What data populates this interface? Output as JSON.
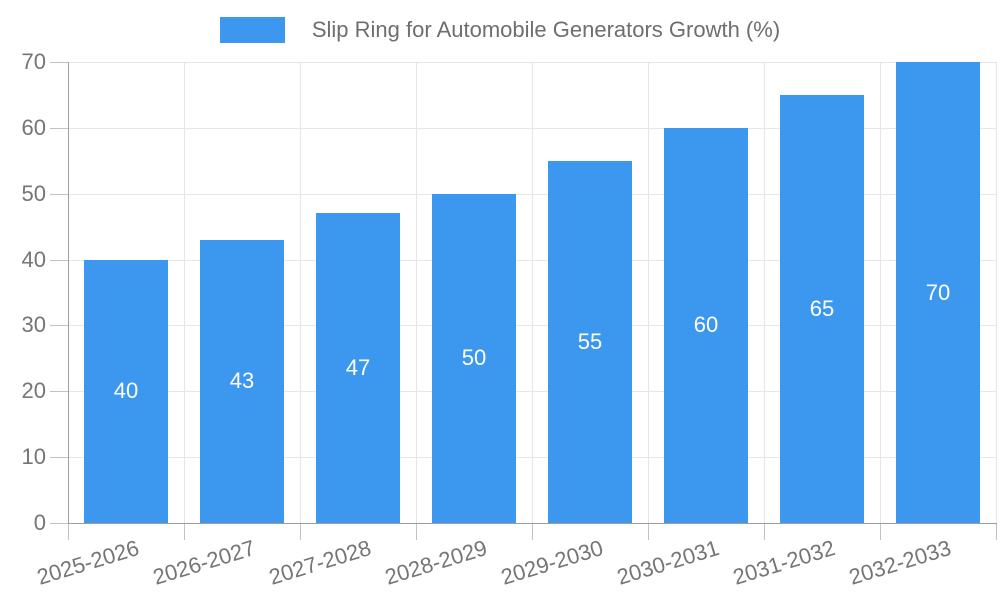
{
  "legend": {
    "label": "Slip Ring for Automobile Generators Growth (%)",
    "position": "top"
  },
  "chart_data": {
    "type": "bar",
    "title": "Slip Ring for Automobile Generators Growth (%)",
    "categories": [
      "2025-2026",
      "2026-2027",
      "2027-2028",
      "2028-2029",
      "2029-2030",
      "2030-2031",
      "2031-2032",
      "2032-2033"
    ],
    "values": [
      40,
      43,
      47,
      50,
      55,
      60,
      65,
      70
    ],
    "value_labels": [
      "40",
      "43",
      "47",
      "50",
      "55",
      "60",
      "65",
      "70"
    ],
    "xlabel": "",
    "ylabel": "",
    "ylim": [
      0,
      70
    ],
    "y_ticks": [
      0,
      10,
      20,
      30,
      40,
      50,
      60,
      70
    ],
    "grid": true,
    "legend_position": "top",
    "x_label_rotation_deg": -17
  },
  "colors": {
    "bar": "#3B98EE",
    "value_label": "#FFFFFF",
    "gridline": "#E6E6E6",
    "axis_line": "#9E9E9E",
    "tick_mark": "#C2C2C2",
    "tick_text": "#757575",
    "legend_text": "#6E6E6E",
    "background": "#FFFFFF"
  }
}
